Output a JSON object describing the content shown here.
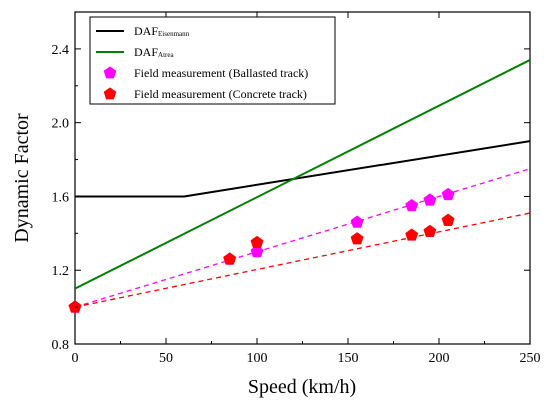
{
  "chart_data": {
    "type": "line",
    "xlabel": "Speed (km/h)",
    "ylabel": "Dynamic Factor",
    "xlim": [
      0,
      250
    ],
    "ylim": [
      0.8,
      2.6
    ],
    "xticks": [
      0,
      50,
      100,
      150,
      200,
      250
    ],
    "xtick_labels": [
      "0",
      "50",
      "100",
      "150",
      "200",
      "250"
    ],
    "yticks": [
      0.8,
      1.2,
      1.6,
      2.0,
      2.4
    ],
    "ytick_labels": [
      "0.8",
      "1.2",
      "1.6",
      "2.0",
      "2.4"
    ],
    "grid": false,
    "legend_position": "top-left",
    "series": [
      {
        "name": "DAFEisenmann",
        "name_main": "DAF",
        "name_sub": "Eisenmann",
        "kind": "line",
        "color": "#000000",
        "x": [
          0,
          60,
          250
        ],
        "y": [
          1.6,
          1.6,
          1.9
        ]
      },
      {
        "name": "DAFAtrea",
        "name_main": "DAF",
        "name_sub": "Atrea",
        "kind": "line",
        "color": "#008000",
        "x": [
          0,
          250
        ],
        "y": [
          1.1,
          2.34
        ]
      },
      {
        "name": "Field measurement (Ballasted track)",
        "kind": "scatter",
        "marker": "pentagon",
        "color": "#ff00ff",
        "x": [
          0,
          85,
          100,
          155,
          185,
          195,
          205
        ],
        "y": [
          1.0,
          1.26,
          1.3,
          1.46,
          1.55,
          1.58,
          1.61
        ],
        "trend": {
          "x": [
            0,
            250
          ],
          "y": [
            1.0,
            1.75
          ]
        }
      },
      {
        "name": "Field measurement (Concrete track)",
        "kind": "scatter",
        "marker": "pentagon",
        "color": "#ff0000",
        "x": [
          0,
          85,
          100,
          155,
          185,
          195,
          205
        ],
        "y": [
          1.0,
          1.26,
          1.35,
          1.37,
          1.39,
          1.41,
          1.47
        ],
        "trend": {
          "x": [
            0,
            250
          ],
          "y": [
            1.0,
            1.51
          ]
        }
      }
    ]
  }
}
